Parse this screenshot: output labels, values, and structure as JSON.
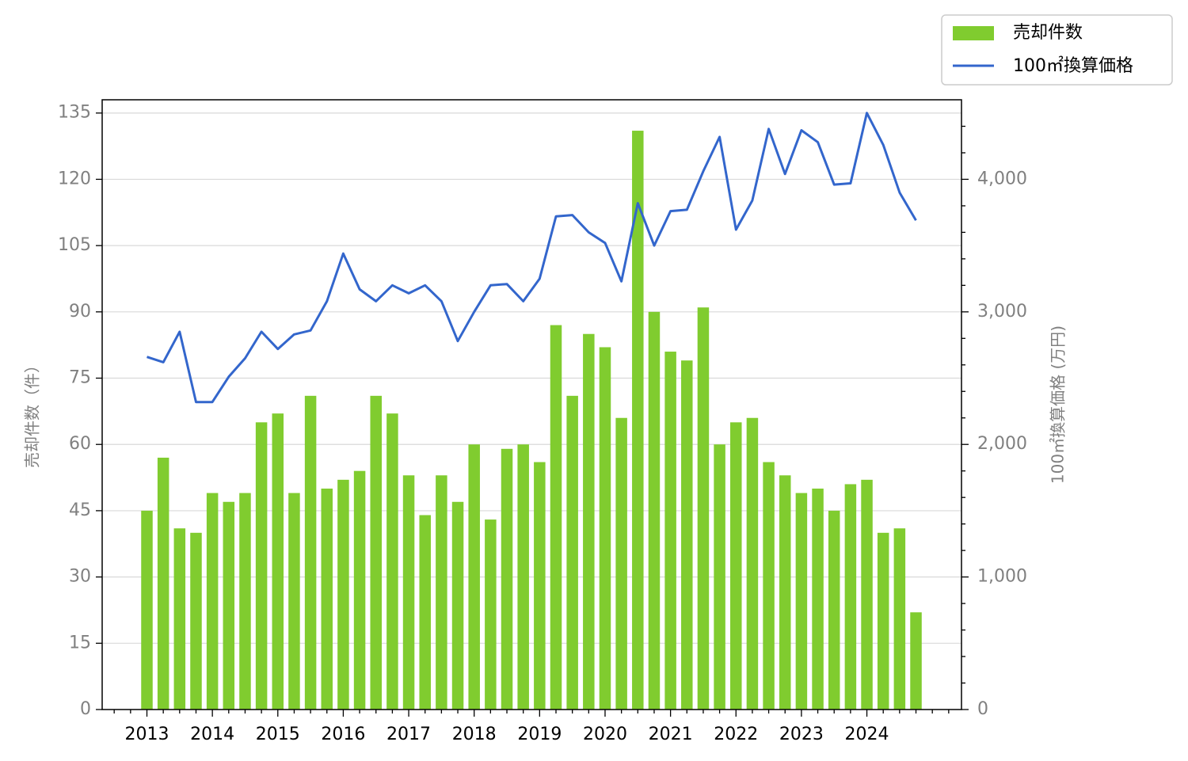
{
  "chart_data": {
    "type": "bar",
    "x_ticks": [
      "2013",
      "2014",
      "2015",
      "2016",
      "2017",
      "2018",
      "2019",
      "2020",
      "2021",
      "2022",
      "2023",
      "2024"
    ],
    "quarters_per_year": 4,
    "series": [
      {
        "name": "売却件数",
        "type": "bar",
        "axis": "left",
        "color": "#80cc2f",
        "values": [
          45,
          57,
          41,
          40,
          49,
          47,
          49,
          65,
          67,
          49,
          71,
          50,
          52,
          54,
          71,
          67,
          53,
          44,
          53,
          47,
          60,
          43,
          59,
          60,
          56,
          87,
          71,
          85,
          82,
          66,
          131,
          90,
          81,
          79,
          91,
          60,
          65,
          66,
          56,
          53,
          49,
          50,
          45,
          51,
          52,
          40,
          41,
          22
        ]
      },
      {
        "name": "100㎡換算価格",
        "type": "line",
        "axis": "right",
        "color": "#3366cc",
        "values": [
          2660,
          2620,
          2850,
          2320,
          2320,
          2510,
          2650,
          2850,
          2720,
          2830,
          2860,
          3080,
          3440,
          3170,
          3080,
          3200,
          3140,
          3200,
          3080,
          2780,
          3000,
          3200,
          3210,
          3080,
          3250,
          3720,
          3730,
          3600,
          3520,
          3230,
          3820,
          3500,
          3760,
          3770,
          4060,
          4320,
          3620,
          3840,
          4380,
          4040,
          4370,
          4280,
          3960,
          3970,
          4500,
          4260,
          3900,
          3690
        ]
      }
    ],
    "y_left": {
      "label": "売却件数（件）",
      "min": 0,
      "max": 138,
      "ticks": [
        0,
        15,
        30,
        45,
        60,
        75,
        90,
        105,
        120,
        135
      ],
      "tick_labels": [
        "0",
        "15",
        "30",
        "45",
        "60",
        "75",
        "90",
        "105",
        "120",
        "135"
      ]
    },
    "y_right": {
      "label": "100㎡換算価格 (万円)",
      "min": 0,
      "max": 4600,
      "ticks": [
        0,
        1000,
        2000,
        3000,
        4000
      ],
      "tick_labels": [
        "0",
        "1,000",
        "2,000",
        "3,000",
        "4,000"
      ]
    },
    "grid": "horizontal",
    "legend_position": "top-right",
    "legend": [
      {
        "label": "売却件数",
        "kind": "bar",
        "color": "#80cc2f"
      },
      {
        "label": "100㎡換算価格",
        "kind": "line",
        "color": "#3366cc"
      }
    ]
  }
}
